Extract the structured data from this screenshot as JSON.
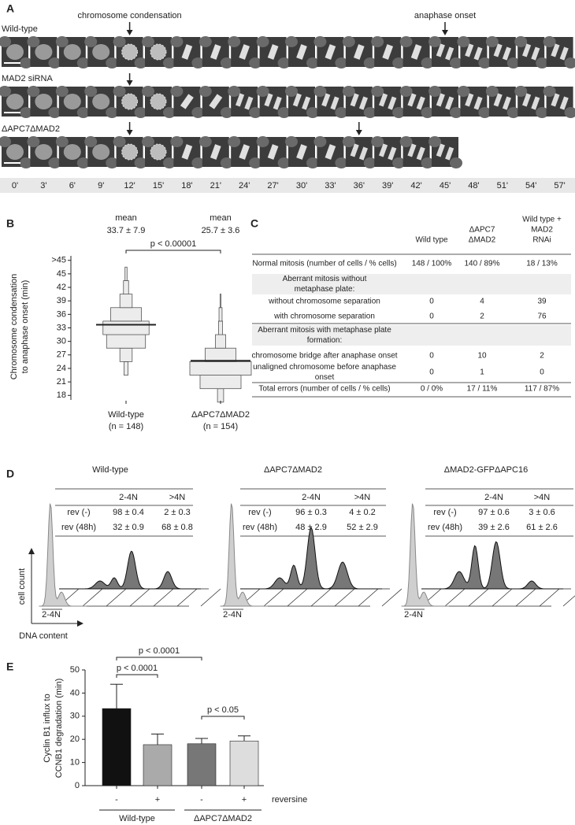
{
  "panel_a": {
    "label": "A",
    "annotations": [
      "chromosome condensation",
      "anaphase onset"
    ],
    "rows": [
      "Wild-type",
      "MAD2 siRNA",
      "ΔAPC7ΔMAD2"
    ],
    "times": [
      "0'",
      "3'",
      "6'",
      "9'",
      "12'",
      "15'",
      "18'",
      "21'",
      "24'",
      "27'",
      "30'",
      "33'",
      "36'",
      "39'",
      "42'",
      "45'",
      "48'",
      "51'",
      "54'",
      "57'"
    ]
  },
  "chart_data": [
    {
      "type": "beanplot",
      "panel_label": "B",
      "ylabel": [
        "Chromosome condensation",
        "to anaphase onset (min)"
      ],
      "categories": [
        "Wild-type",
        "ΔAPC7ΔMAD2"
      ],
      "n_labels": [
        "(n = 148)",
        "(n = 154)"
      ],
      "mean_title": "mean",
      "means": [
        33.7,
        25.7
      ],
      "value_labels": [
        "33.7 ± 7.9",
        "25.7 ± 3.6"
      ],
      "distributions": [
        {
          "bins": [
            22.5,
            25.5,
            28.5,
            31.5,
            34.5,
            37.5,
            40.5,
            43.5,
            46.5
          ],
          "counts": [
            4,
            12,
            38,
            45,
            30,
            12,
            5,
            2
          ]
        },
        {
          "bins": [
            16.5,
            19.5,
            22.5,
            25.5,
            28.5,
            31.5,
            34.5,
            37.5,
            40.5
          ],
          "counts": [
            6,
            40,
            60,
            30,
            10,
            4,
            3,
            1
          ]
        }
      ],
      "color": "#ececec",
      "ylim": [
        17,
        49
      ],
      "yticks": [
        18,
        21,
        24,
        27,
        30,
        33,
        36,
        39,
        42,
        45,
        {
          "value": 48,
          "label": ">45"
        }
      ],
      "annotation": "p < 0.00001"
    },
    {
      "type": "bar",
      "panel_label": "E",
      "ylabel": [
        "Cyclin B1 influx to",
        "CCNB1 degradation (min)"
      ],
      "categories": [
        "-",
        "+",
        "-",
        "+"
      ],
      "group_labels": [
        "Wild-type",
        "ΔAPC7ΔMAD2"
      ],
      "x_label": "reversine",
      "values": [
        33.3,
        17.7,
        18.1,
        19.3
      ],
      "errors": [
        10.5,
        4.6,
        2.3,
        2.2
      ],
      "colors": [
        "#111111",
        "#aaaaaa",
        "#777777",
        "#dddddd"
      ],
      "ylim": [
        0,
        50
      ],
      "yticks": [
        0,
        10,
        20,
        30,
        40,
        50
      ],
      "annotations": [
        "p < 0.0001",
        "p < 0.0001",
        "p < 0.05"
      ]
    }
  ],
  "panel_c": {
    "label": "C",
    "header": [
      [
        "Wild type"
      ],
      [
        "ΔAPC7",
        "ΔMAD2"
      ],
      [
        "Wild type +",
        "MAD2",
        "RNAi"
      ]
    ],
    "rows": [
      [
        "Normal mitosis (number of cells / % cells)",
        "148 / 100%",
        "140 / 89%",
        "18 / 13%"
      ],
      [
        [
          "Aberrant mitosis without",
          "metaphase plate:"
        ]
      ],
      [
        "without chromosome separation",
        "0",
        "4",
        "39"
      ],
      [
        "with chromosome separation",
        "0",
        "2",
        "76"
      ],
      [
        [
          "Aberrant mitosis with metaphase plate",
          "formation:"
        ]
      ],
      [
        "chromosome bridge after anaphase onset",
        "0",
        "10",
        "2"
      ],
      [
        [
          "unaligned chromosome before anaphase",
          "onset"
        ],
        "0",
        "1",
        "0"
      ],
      [
        "Total errors (number of cells / % cells)",
        "0 / 0%",
        "17 / 11%",
        "117 / 87%"
      ]
    ]
  },
  "panel_d": {
    "label": "D",
    "y_axis": "cell count",
    "x_axis": "DNA content",
    "panels": [
      {
        "title": "Wild-type",
        "gate": "2-4N",
        "columns": [
          "2-4N",
          ">4N"
        ],
        "rows": [
          [
            "rev (-)",
            "98 ± 0.4",
            "2 ± 0.3"
          ],
          [
            "rev (48h)",
            "32 ± 0.9",
            "68 ± 0.8"
          ]
        ]
      },
      {
        "title": "ΔAPC7ΔMAD2",
        "gate": "2-4N",
        "columns": [
          "2-4N",
          ">4N"
        ],
        "rows": [
          [
            "rev (-)",
            "96 ± 0.3",
            "4 ± 0.2"
          ],
          [
            "rev (48h)",
            "48 ± 2.9",
            "52 ± 2.9"
          ]
        ]
      },
      {
        "title": "ΔMAD2-GFPΔAPC16",
        "gate": "2-4N",
        "columns": [
          "2-4N",
          ">4N"
        ],
        "rows": [
          [
            "rev (-)",
            "97 ± 0.6",
            "3 ± 0.6"
          ],
          [
            "rev (48h)",
            "39 ± 2.6",
            "61 ± 2.6"
          ]
        ]
      }
    ]
  }
}
